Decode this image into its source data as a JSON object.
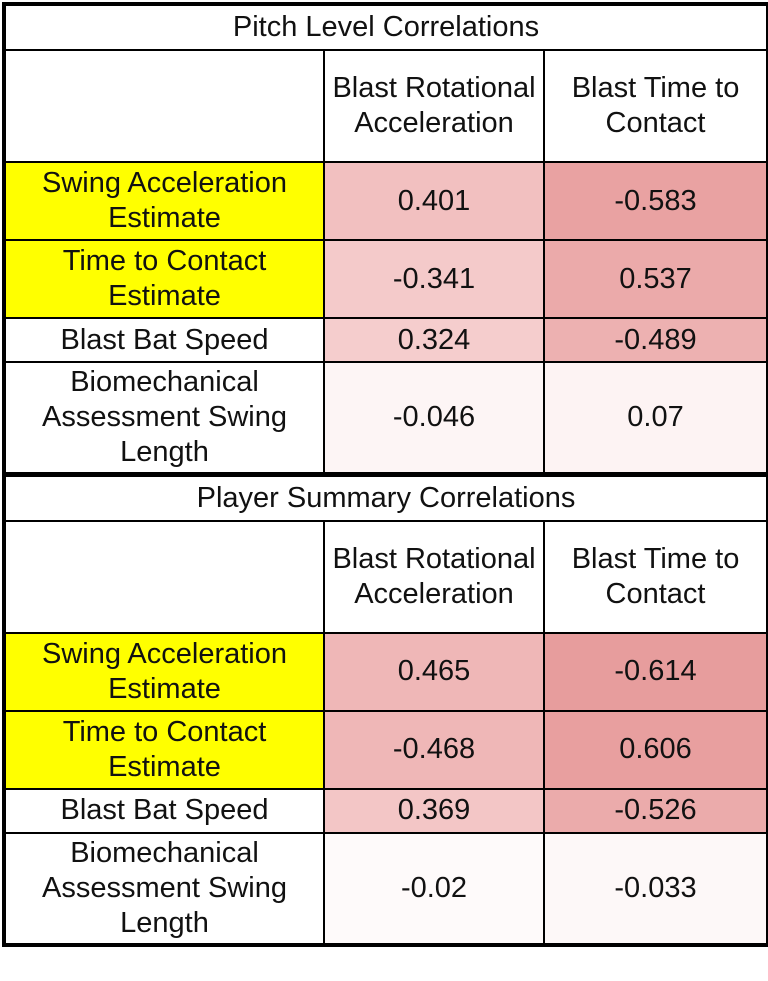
{
  "tables": [
    {
      "title": "Pitch Level Correlations",
      "columns": [
        "Blast Rotational Acceleration",
        "Blast Time to Contact"
      ],
      "rows": [
        {
          "label": "Swing Acceleration Estimate",
          "highlight": true,
          "values": [
            "0.401",
            "-0.583"
          ],
          "colors": [
            "#f2c0c0",
            "#e9a2a2"
          ]
        },
        {
          "label": "Time to Contact Estimate",
          "highlight": true,
          "values": [
            "-0.341",
            "0.537"
          ],
          "colors": [
            "#f4caca",
            "#ebaaaa"
          ]
        },
        {
          "label": "Blast Bat Speed",
          "highlight": false,
          "values": [
            "0.324",
            "-0.489"
          ],
          "colors": [
            "#f5cdcd",
            "#edb1b1"
          ]
        },
        {
          "label": "Biomechanical Assessment Swing Length",
          "highlight": false,
          "values": [
            "-0.046",
            "0.07"
          ],
          "colors": [
            "#fdf5f5",
            "#fdf3f3"
          ]
        }
      ]
    },
    {
      "title": "Player Summary Correlations",
      "columns": [
        "Blast Rotational Acceleration",
        "Blast Time to Contact"
      ],
      "rows": [
        {
          "label": "Swing Acceleration Estimate",
          "highlight": true,
          "values": [
            "0.465",
            "-0.614"
          ],
          "colors": [
            "#efb7b7",
            "#e79d9d"
          ]
        },
        {
          "label": "Time to Contact Estimate",
          "highlight": true,
          "values": [
            "-0.468",
            "0.606"
          ],
          "colors": [
            "#efb7b7",
            "#e89f9f"
          ]
        },
        {
          "label": "Blast Bat Speed",
          "highlight": false,
          "values": [
            "0.369",
            "-0.526"
          ],
          "colors": [
            "#f3c6c6",
            "#ebabab"
          ]
        },
        {
          "label": "Biomechanical Assessment Swing Length",
          "highlight": false,
          "values": [
            "-0.02",
            "-0.033"
          ],
          "colors": [
            "#fefafa",
            "#fdf8f8"
          ]
        }
      ]
    }
  ]
}
